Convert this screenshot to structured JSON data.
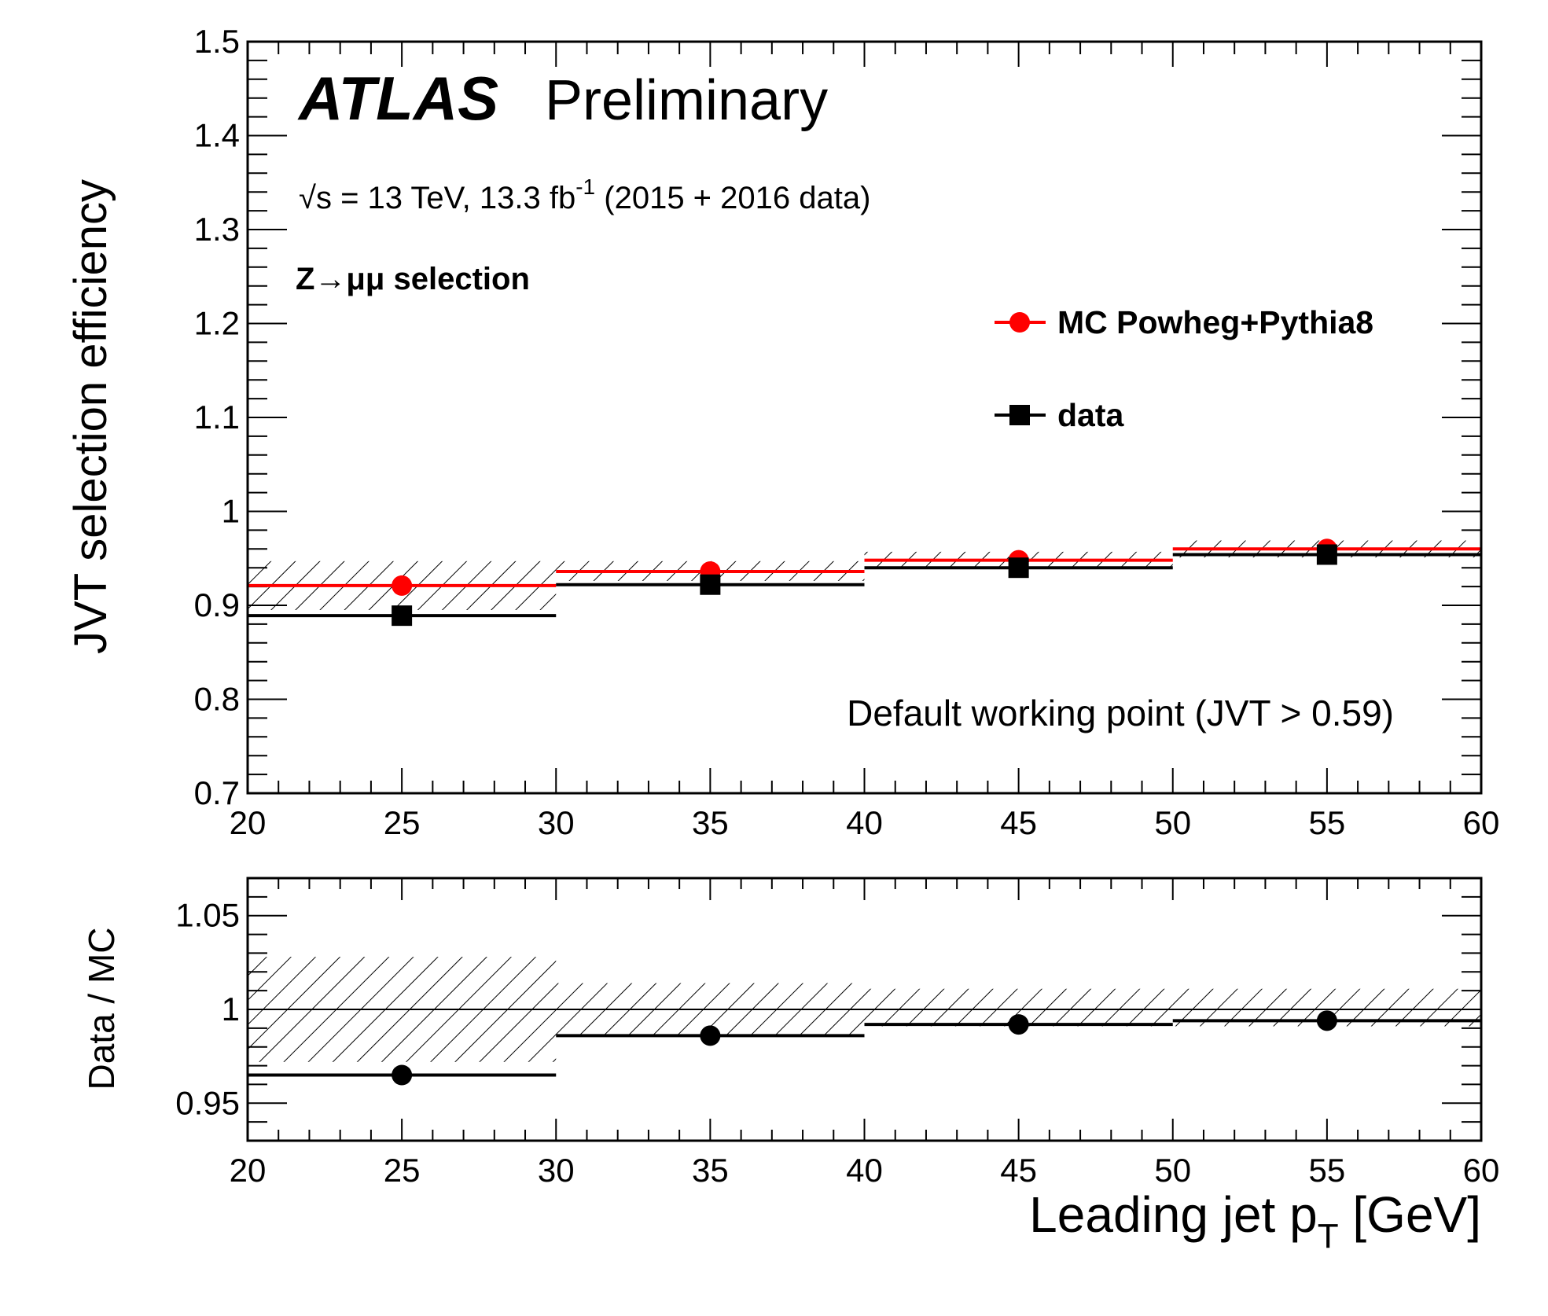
{
  "header": {
    "experiment": "ATLAS",
    "status": "Preliminary",
    "energy_prefix": "√s = 13 TeV, 13.3 fb",
    "energy_sup": "-1",
    "energy_suffix": " (2015 + 2016 data)",
    "selection": "Z→μμ selection",
    "working_point": "Default working point (JVT > 0.59)"
  },
  "colors": {
    "mc": "#ff0000",
    "data": "#000000"
  },
  "chart_data": [
    {
      "type": "scatter",
      "panel": "main",
      "ylabel": "JVT selection efficiency",
      "xlim": [
        20,
        60
      ],
      "ylim": [
        0.7,
        1.5
      ],
      "xticks": [
        "20",
        "25",
        "30",
        "35",
        "40",
        "45",
        "50",
        "55",
        "60"
      ],
      "yticks": [
        "0.7",
        "0.8",
        "0.9",
        "1",
        "1.1",
        "1.2",
        "1.3",
        "1.4",
        "1.5"
      ],
      "bins": [
        [
          20,
          30
        ],
        [
          30,
          40
        ],
        [
          40,
          50
        ],
        [
          50,
          60
        ]
      ],
      "x": [
        25,
        35,
        45,
        55
      ],
      "series": [
        {
          "name": "MC Powheg+Pythia8",
          "marker": "circle",
          "values": [
            0.921,
            0.936,
            0.948,
            0.96
          ],
          "syst_band": [
            [
              0.895,
              0.947
            ],
            [
              0.926,
              0.947
            ],
            [
              0.939,
              0.957
            ],
            [
              0.951,
              0.969
            ]
          ]
        },
        {
          "name": "data",
          "marker": "square",
          "values": [
            0.889,
            0.922,
            0.94,
            0.954
          ]
        }
      ],
      "legend_position": "top-right"
    },
    {
      "type": "scatter",
      "panel": "ratio",
      "xlabel": "Leading jet p",
      "xlabel_sub": "T",
      "xlabel_unit": " [GeV]",
      "ylabel": "Data / MC",
      "xlim": [
        20,
        60
      ],
      "ylim": [
        0.93,
        1.07
      ],
      "xticks": [
        "20",
        "25",
        "30",
        "35",
        "40",
        "45",
        "50",
        "55",
        "60"
      ],
      "yticks": [
        "0.95",
        "1",
        "1.05"
      ],
      "reference_line": 1,
      "bins": [
        [
          20,
          30
        ],
        [
          30,
          40
        ],
        [
          40,
          50
        ],
        [
          50,
          60
        ]
      ],
      "x": [
        25,
        35,
        45,
        55
      ],
      "values": [
        0.965,
        0.986,
        0.992,
        0.994
      ],
      "syst_band": [
        [
          0.972,
          1.028
        ],
        [
          0.986,
          1.014
        ],
        [
          0.991,
          1.011
        ],
        [
          0.991,
          1.011
        ]
      ]
    }
  ]
}
